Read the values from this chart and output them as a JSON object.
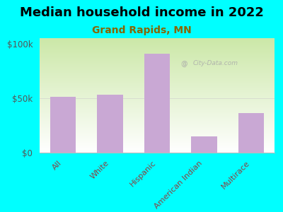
{
  "title": "Median household income in 2022",
  "subtitle": "Grand Rapids, MN",
  "categories": [
    "All",
    "White",
    "Hispanic",
    "American Indian",
    "Multirace"
  ],
  "values": [
    51000,
    53000,
    91000,
    15000,
    36000
  ],
  "bar_color": "#c9a8d4",
  "title_fontsize": 13,
  "subtitle_fontsize": 10,
  "subtitle_color": "#888833",
  "ytick_color": "#555555",
  "xtick_color": "#884444",
  "background_color": "#00ffff",
  "plot_bg_top_left": "#d4e8c0",
  "plot_bg_bottom": "#ffffff",
  "ylim": [
    0,
    105000
  ],
  "yticks": [
    0,
    50000,
    100000
  ],
  "ytick_labels": [
    "$0",
    "$50k",
    "$100k"
  ],
  "watermark": "City-Data.com"
}
